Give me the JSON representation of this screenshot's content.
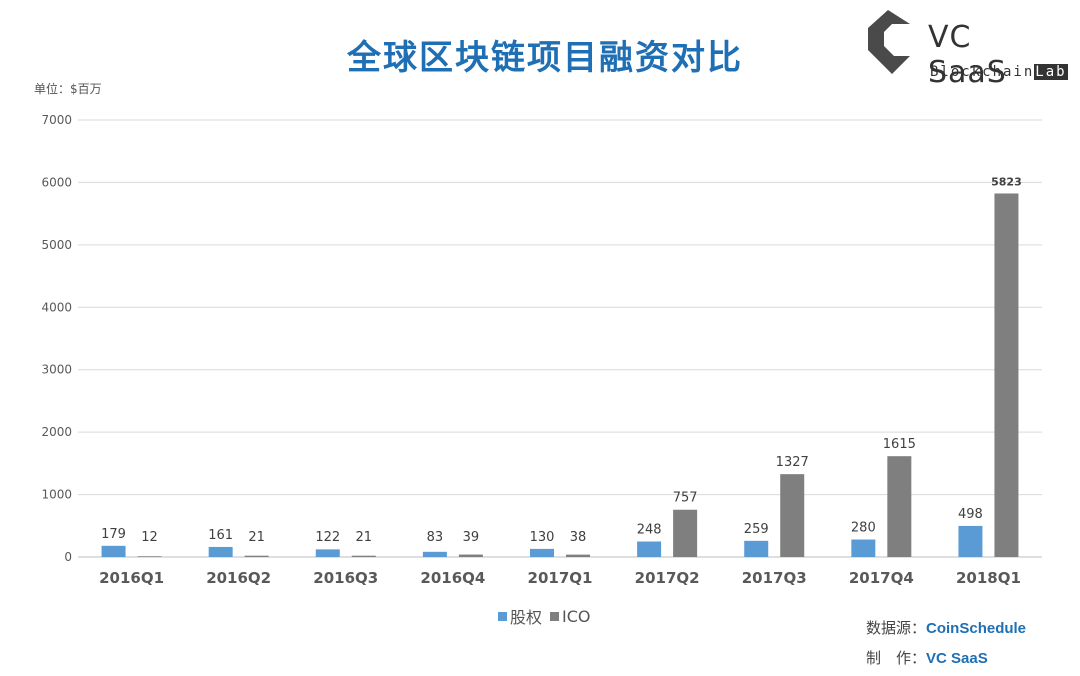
{
  "title": "全球区块链项目融资对比",
  "unit_label": "单位：$百万",
  "logo": {
    "main": "VC SaaS",
    "sub": "Blockchain",
    "sub_highlight": "Lab",
    "icon": "vc-saas-logo-icon",
    "color": "#4a4a4a"
  },
  "source": {
    "label": "数据源：",
    "value": "CoinSchedule"
  },
  "maker": {
    "label": "制　作：",
    "value": "VC SaaS"
  },
  "colors": {
    "equity": "#5b9bd5",
    "ico": "#7f7f7f",
    "title": "#1f6fb5",
    "grid": "#d9d9d9"
  },
  "chart_data": {
    "type": "bar",
    "title": "全球区块链项目融资对比",
    "ylabel": "单位：$百万",
    "xlabel": "",
    "ylim": [
      0,
      7000
    ],
    "yticks": [
      0,
      1000,
      2000,
      3000,
      4000,
      5000,
      6000,
      7000
    ],
    "grid": true,
    "legend": "bottom-center",
    "categories": [
      "2016Q1",
      "2016Q2",
      "2016Q3",
      "2016Q4",
      "2017Q1",
      "2017Q2",
      "2017Q3",
      "2017Q4",
      "2018Q1"
    ],
    "series": [
      {
        "name": "股权",
        "values": [
          179,
          161,
          122,
          83,
          130,
          248,
          259,
          280,
          498
        ]
      },
      {
        "name": "ICO",
        "values": [
          12,
          21,
          21,
          39,
          38,
          757,
          1327,
          1615,
          5823
        ]
      }
    ]
  }
}
